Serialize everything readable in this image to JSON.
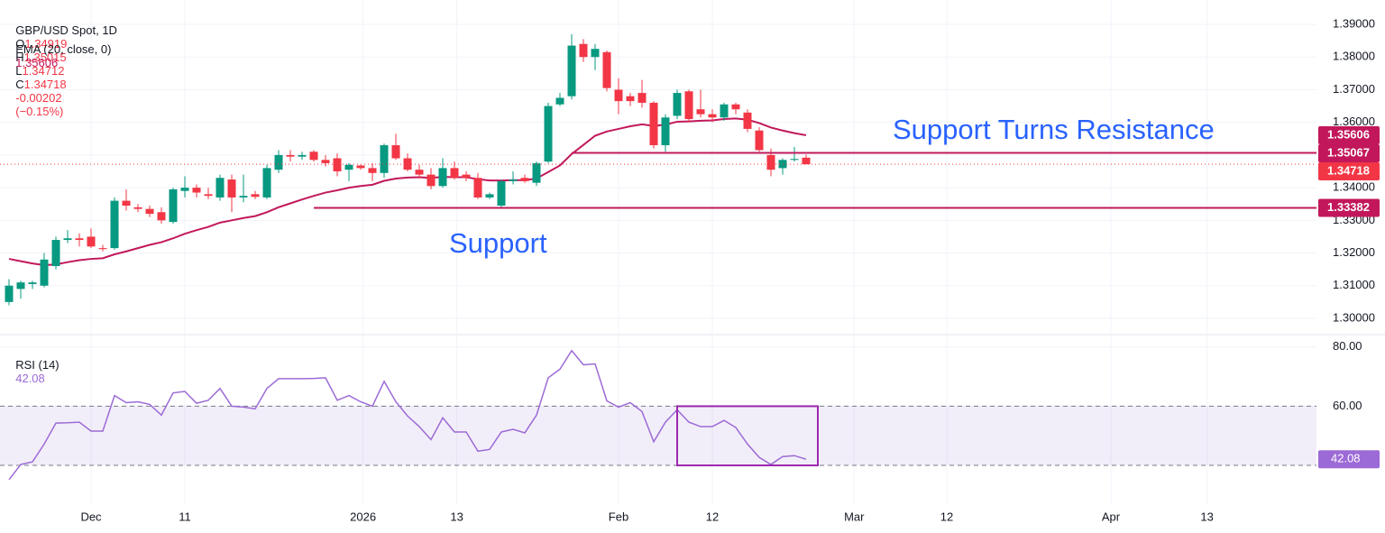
{
  "chart_data": [
    {
      "type": "candlestick",
      "title": "GBP/USD Spot, 1D",
      "ohlc_labels": [
        "O",
        "H",
        "L",
        "C"
      ],
      "change": -0.00202,
      "change_pct": {
        "value": -0.15,
        "label": "(−0.15%)"
      },
      "up_color": "#089981",
      "down_color": "#f23645",
      "open": [
        1.305,
        1.309,
        1.3105,
        1.31,
        1.316,
        1.324,
        1.3245,
        1.325,
        1.3215,
        1.3215,
        1.336,
        1.334,
        1.3335,
        1.3325,
        1.3295,
        1.339,
        1.34,
        1.338,
        1.337,
        1.3425,
        1.337,
        1.338,
        1.337,
        1.3455,
        1.35,
        1.3495,
        1.351,
        1.3485,
        1.349,
        1.3455,
        1.3468,
        1.346,
        1.3445,
        1.353,
        1.349,
        1.3455,
        1.344,
        1.3405,
        1.346,
        1.344,
        1.343,
        1.337,
        1.3345,
        1.342,
        1.343,
        1.3415,
        1.348,
        1.3655,
        1.368,
        1.384,
        1.38,
        1.3815,
        1.37,
        1.368,
        1.369,
        1.366,
        1.353,
        1.362,
        1.3695,
        1.364,
        1.3625,
        1.3615,
        1.3655,
        1.363,
        1.3575,
        1.35,
        1.346,
        1.3485,
        1.34919
      ],
      "high": [
        1.312,
        1.3115,
        1.3115,
        1.32,
        1.325,
        1.327,
        1.326,
        1.3275,
        1.3225,
        1.337,
        1.3395,
        1.335,
        1.3345,
        1.334,
        1.34,
        1.3435,
        1.341,
        1.34,
        1.344,
        1.344,
        1.344,
        1.339,
        1.347,
        1.3515,
        1.3515,
        1.351,
        1.3515,
        1.35,
        1.3505,
        1.3475,
        1.347,
        1.3475,
        1.3535,
        1.3565,
        1.3505,
        1.347,
        1.346,
        1.349,
        1.348,
        1.345,
        1.3445,
        1.3385,
        1.3425,
        1.345,
        1.344,
        1.348,
        1.366,
        1.369,
        1.387,
        1.3855,
        1.384,
        1.382,
        1.3735,
        1.369,
        1.373,
        1.3665,
        1.3625,
        1.37,
        1.37,
        1.37,
        1.364,
        1.366,
        1.366,
        1.364,
        1.3585,
        1.352,
        1.349,
        1.3525,
        1.35015
      ],
      "low": [
        1.304,
        1.306,
        1.309,
        1.3095,
        1.315,
        1.323,
        1.322,
        1.3215,
        1.3205,
        1.321,
        1.333,
        1.3325,
        1.331,
        1.329,
        1.329,
        1.337,
        1.337,
        1.3365,
        1.336,
        1.3325,
        1.3355,
        1.3365,
        1.3365,
        1.3445,
        1.348,
        1.3485,
        1.348,
        1.3465,
        1.3435,
        1.342,
        1.3455,
        1.342,
        1.343,
        1.3485,
        1.345,
        1.343,
        1.3395,
        1.34,
        1.3425,
        1.342,
        1.3365,
        1.3365,
        1.334,
        1.341,
        1.3415,
        1.3405,
        1.3475,
        1.365,
        1.367,
        1.3785,
        1.376,
        1.3695,
        1.3625,
        1.365,
        1.3645,
        1.352,
        1.351,
        1.361,
        1.36,
        1.3615,
        1.36,
        1.3605,
        1.3625,
        1.357,
        1.351,
        1.3435,
        1.344,
        1.348,
        1.34712
      ],
      "close": [
        1.31,
        1.311,
        1.311,
        1.318,
        1.324,
        1.3245,
        1.324,
        1.322,
        1.3212,
        1.336,
        1.3345,
        1.3335,
        1.332,
        1.33,
        1.3395,
        1.34,
        1.3385,
        1.3375,
        1.343,
        1.337,
        1.3375,
        1.3372,
        1.346,
        1.35,
        1.3495,
        1.35,
        1.3485,
        1.3475,
        1.345,
        1.347,
        1.346,
        1.3445,
        1.353,
        1.349,
        1.3455,
        1.344,
        1.3405,
        1.346,
        1.343,
        1.343,
        1.337,
        1.338,
        1.342,
        1.3425,
        1.342,
        1.3475,
        1.365,
        1.3675,
        1.3835,
        1.38,
        1.3825,
        1.3705,
        1.3665,
        1.3665,
        1.366,
        1.353,
        1.3615,
        1.369,
        1.361,
        1.3625,
        1.3615,
        1.3655,
        1.364,
        1.358,
        1.3515,
        1.3455,
        1.3485,
        1.3488,
        1.34718
      ],
      "ema": {
        "name": "EMA (20, close, 0)",
        "color": "#c2185b",
        "values": [
          1.3182,
          1.3175,
          1.3168,
          1.3163,
          1.3165,
          1.3172,
          1.3178,
          1.3182,
          1.3184,
          1.3196,
          1.3205,
          1.3215,
          1.3225,
          1.3233,
          1.3245,
          1.3259,
          1.327,
          1.328,
          1.3293,
          1.33,
          1.3307,
          1.3313,
          1.3325,
          1.334,
          1.3352,
          1.3364,
          1.3375,
          1.3385,
          1.3392,
          1.34,
          1.3405,
          1.3409,
          1.3421,
          1.3428,
          1.3431,
          1.3432,
          1.343,
          1.3433,
          1.3432,
          1.3432,
          1.3426,
          1.3422,
          1.3422,
          1.3423,
          1.3423,
          1.3428,
          1.3448,
          1.3468,
          1.3503,
          1.3531,
          1.3559,
          1.3572,
          1.358,
          1.3588,
          1.3594,
          1.3589,
          1.3593,
          1.3602,
          1.3603,
          1.3605,
          1.3606,
          1.361,
          1.3612,
          1.3608,
          1.3598,
          1.3584,
          1.3575,
          1.3567,
          1.35606
        ]
      },
      "lines": [
        {
          "value": 1.35067,
          "from": 48,
          "color": "#c2185b"
        },
        {
          "value": 1.33382,
          "from": 26,
          "color": "#c2185b"
        }
      ],
      "annotations": [
        "Support Turns Resistance",
        "Support"
      ],
      "annotation_color": "#2962ff",
      "xlim": [
        -0.77,
        111.54
      ],
      "ylim": [
        1.2953,
        1.39746
      ],
      "yticks": [
        {
          "value": 1.3,
          "label": "1.30000"
        },
        {
          "value": 1.31,
          "label": "1.31000"
        },
        {
          "value": 1.32,
          "label": "1.32000"
        },
        {
          "value": 1.33,
          "label": "1.33000"
        },
        {
          "value": 1.34,
          "label": "1.34000"
        },
        {
          "value": 1.35,
          "label": "1.35000"
        },
        {
          "value": 1.36,
          "label": "1.36000"
        },
        {
          "value": 1.37,
          "label": "1.37000"
        },
        {
          "value": 1.38,
          "label": "1.38000"
        },
        {
          "value": 1.39,
          "label": "1.39000"
        }
      ],
      "grid": true
    },
    {
      "type": "line",
      "series": [
        {
          "name": "RSI (14)",
          "color": "#9c6ad6",
          "values": [
            35.2,
            40.3,
            41.2,
            47.2,
            54.3,
            54.4,
            54.6,
            51.6,
            51.6,
            63.6,
            61.2,
            61.5,
            60.6,
            57,
            64.5,
            65,
            61,
            62,
            66,
            60,
            59.7,
            59.1,
            66,
            69.3,
            69.3,
            69.3,
            69.4,
            69.6,
            62,
            63.6,
            61.5,
            60,
            68.4,
            61.5,
            56.7,
            53.1,
            48.7,
            56.1,
            51.3,
            51.3,
            44.8,
            45.4,
            51.3,
            52.2,
            51,
            57,
            69.6,
            72.5,
            78.8,
            74,
            74.3,
            61.8,
            59.7,
            61.2,
            58.2,
            48,
            54.6,
            58.8,
            54.6,
            53.1,
            53.1,
            55.2,
            52.8,
            47.2,
            42.7,
            40.3,
            43,
            43.3,
            42.08
          ]
        }
      ],
      "band": [
        40,
        60
      ],
      "band_color": "#7e57c2",
      "highlight": {
        "x": [
          57,
          69
        ],
        "y": [
          40,
          60
        ],
        "color": "#9c27b0"
      },
      "xlim": [
        -0.77,
        111.54
      ],
      "ylim": [
        26.6,
        83.9
      ],
      "yticks": [
        {
          "value": 80,
          "label": "80.00"
        },
        {
          "value": 60,
          "label": "60.00"
        }
      ],
      "xticks": [
        {
          "value": 7,
          "label": "Dec"
        },
        {
          "value": 15,
          "label": "11"
        },
        {
          "value": 30.2,
          "label": "2026"
        },
        {
          "value": 38.2,
          "label": "13"
        },
        {
          "value": 52,
          "label": "Feb"
        },
        {
          "value": 60,
          "label": "12"
        },
        {
          "value": 72.1,
          "label": "Mar"
        },
        {
          "value": 80,
          "label": "12"
        },
        {
          "value": 94,
          "label": "Apr"
        },
        {
          "value": 102.2,
          "label": "13"
        }
      ],
      "grid": true
    }
  ]
}
